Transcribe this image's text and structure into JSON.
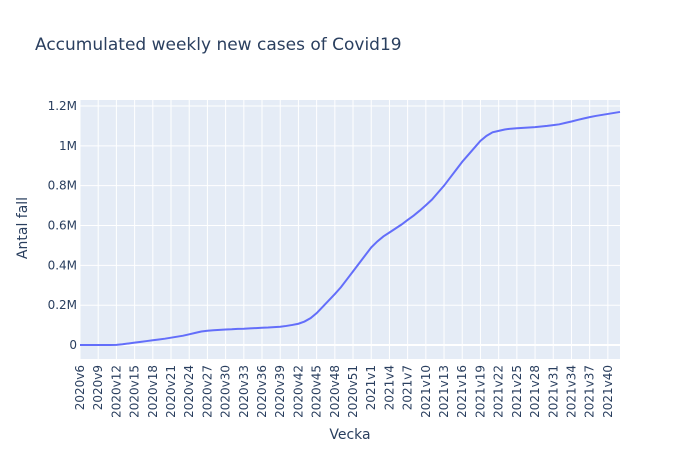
{
  "chart_data": {
    "type": "line",
    "title": "Accumulated weekly new cases of Covid19",
    "xlabel": "Vecka",
    "ylabel": "Antal fall",
    "ylim": [
      -70000,
      1230000
    ],
    "yticks": [
      {
        "value": 0,
        "label": "0"
      },
      {
        "value": 200000,
        "label": "0.2M"
      },
      {
        "value": 400000,
        "label": "0.4M"
      },
      {
        "value": 600000,
        "label": "0.6M"
      },
      {
        "value": 800000,
        "label": "0.8M"
      },
      {
        "value": 1000000,
        "label": "1M"
      },
      {
        "value": 1200000,
        "label": "1.2M"
      }
    ],
    "xtick_labels": [
      "2020v6",
      "2020v9",
      "2020v12",
      "2020v15",
      "2020v18",
      "2020v21",
      "2020v24",
      "2020v27",
      "2020v30",
      "2020v33",
      "2020v36",
      "2020v39",
      "2020v42",
      "2020v45",
      "2020v48",
      "2020v51",
      "2021v1",
      "2021v4",
      "2021v7",
      "2021v10",
      "2021v13",
      "2021v16",
      "2021v19",
      "2021v22",
      "2021v25",
      "2021v28",
      "2021v31",
      "2021v34",
      "2021v37",
      "2021v40"
    ],
    "grid": true,
    "line_color": "#636efa",
    "plot_bg": "#e5ecf6",
    "series": [
      {
        "x": [
          "2020v6",
          "2020v7",
          "2020v8",
          "2020v9",
          "2020v10",
          "2020v11",
          "2020v12",
          "2020v13",
          "2020v14",
          "2020v15",
          "2020v16",
          "2020v17",
          "2020v18",
          "2020v19",
          "2020v20",
          "2020v21",
          "2020v22",
          "2020v23",
          "2020v24",
          "2020v25",
          "2020v26",
          "2020v27",
          "2020v28",
          "2020v29",
          "2020v30",
          "2020v31",
          "2020v32",
          "2020v33",
          "2020v34",
          "2020v35",
          "2020v36",
          "2020v37",
          "2020v38",
          "2020v39",
          "2020v40",
          "2020v41",
          "2020v42",
          "2020v43",
          "2020v44",
          "2020v45",
          "2020v46",
          "2020v47",
          "2020v48",
          "2020v49",
          "2020v50",
          "2020v51",
          "2020v52",
          "2020v53",
          "2021v1",
          "2021v2",
          "2021v3",
          "2021v4",
          "2021v5",
          "2021v6",
          "2021v7",
          "2021v8",
          "2021v9",
          "2021v10",
          "2021v11",
          "2021v12",
          "2021v13",
          "2021v14",
          "2021v15",
          "2021v16",
          "2021v17",
          "2021v18",
          "2021v19",
          "2021v20",
          "2021v21",
          "2021v22",
          "2021v23",
          "2021v24",
          "2021v25",
          "2021v26",
          "2021v27",
          "2021v28",
          "2021v29",
          "2021v30",
          "2021v31",
          "2021v32",
          "2021v33",
          "2021v34",
          "2021v35",
          "2021v36",
          "2021v37",
          "2021v38",
          "2021v39",
          "2021v40",
          "2021v41",
          "2021v42"
        ],
        "y": [
          0,
          0,
          0,
          0,
          0,
          0,
          1000,
          4000,
          8000,
          12000,
          16000,
          20000,
          24000,
          28000,
          32000,
          37000,
          42000,
          47000,
          54000,
          61000,
          68000,
          72000,
          74000,
          76000,
          78000,
          79000,
          81000,
          82000,
          84000,
          85000,
          87000,
          88000,
          90000,
          92000,
          96000,
          101000,
          107000,
          118000,
          135000,
          160000,
          192000,
          224000,
          256000,
          290000,
          330000,
          370000,
          410000,
          450000,
          490000,
          520000,
          545000,
          565000,
          585000,
          605000,
          628000,
          650000,
          675000,
          702000,
          730000,
          765000,
          800000,
          840000,
          880000,
          920000,
          955000,
          990000,
          1025000,
          1050000,
          1068000,
          1075000,
          1082000,
          1086000,
          1088000,
          1090000,
          1092000,
          1094000,
          1097000,
          1100000,
          1104000,
          1108000,
          1115000,
          1122000,
          1130000,
          1137000,
          1144000,
          1150000,
          1155000,
          1160000,
          1165000,
          1170000
        ]
      }
    ]
  }
}
